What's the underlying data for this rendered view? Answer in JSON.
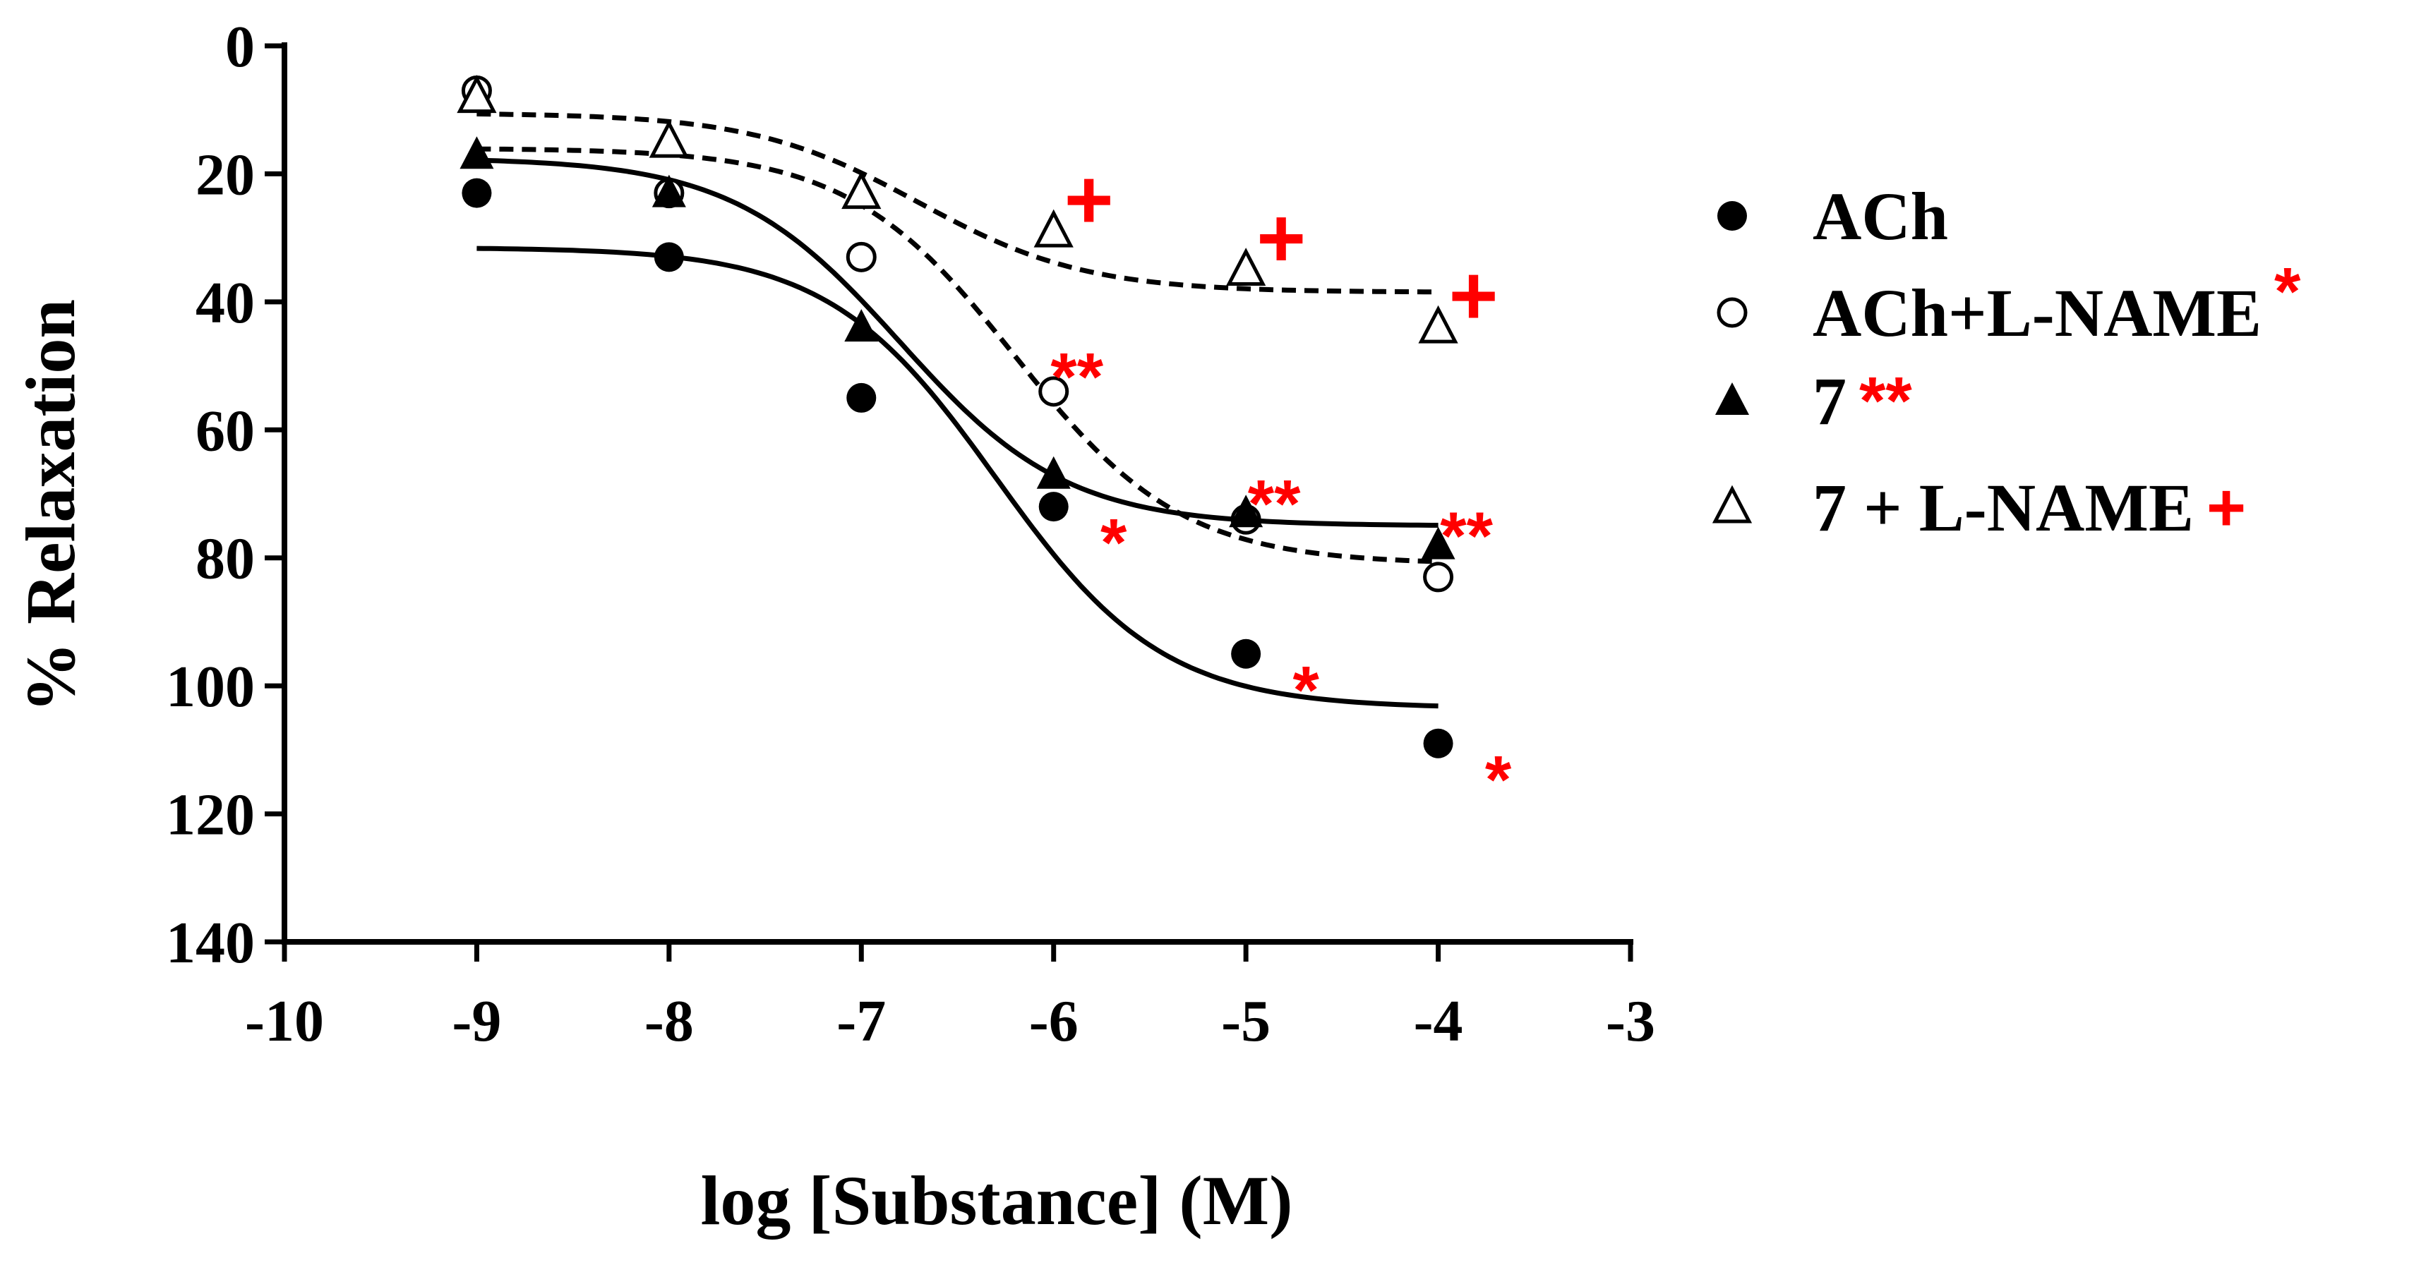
{
  "chart_data": {
    "type": "scatter",
    "title": "",
    "xlabel": "log [Substance] (M)",
    "ylabel": "% Relaxation",
    "xlim": [
      -10,
      -3
    ],
    "ylim": [
      0,
      140
    ],
    "y_inverted": true,
    "x_ticks": [
      "-10",
      "-9",
      "-8",
      "-7",
      "-6",
      "-5",
      "-4",
      "-3"
    ],
    "y_ticks": [
      "0",
      "20",
      "40",
      "60",
      "80",
      "100",
      "120",
      "140"
    ],
    "grid": false,
    "legend_position": "right",
    "colors": {
      "axis": "#000000",
      "significance": "#ff0000"
    },
    "x": [
      -9,
      -8,
      -7,
      -6,
      -5,
      -4
    ],
    "series": [
      {
        "name": "ACh",
        "marker": "filled-circle",
        "line": "solid",
        "legend_mark": "",
        "values": [
          23,
          33,
          55,
          72,
          95,
          109
        ],
        "curve": {
          "bottom": 31.5,
          "top": 103.5,
          "logEC50": -6.3,
          "hill": 1.0
        },
        "sig_marks": [
          "",
          "",
          "",
          "*",
          "*",
          "*"
        ]
      },
      {
        "name": "ACh+L-NAME",
        "marker": "open-circle",
        "line": "dashed",
        "legend_mark": "*",
        "values": [
          7,
          23,
          33,
          54,
          74,
          83
        ],
        "curve": {
          "bottom": 16,
          "top": 81,
          "logEC50": -6.2,
          "hill": 1.0
        },
        "sig_marks": [
          "",
          "",
          "",
          "**",
          "",
          ""
        ]
      },
      {
        "name": "7",
        "marker": "filled-triangle",
        "line": "solid",
        "legend_mark": "**",
        "values": [
          17,
          23,
          44,
          67,
          73,
          78
        ],
        "curve": {
          "bottom": 17.5,
          "top": 75,
          "logEC50": -6.8,
          "hill": 1.0
        },
        "sig_marks": [
          "",
          "",
          "",
          "",
          "**",
          "**"
        ]
      },
      {
        "name": "7 + L-NAME",
        "marker": "open-triangle",
        "line": "dashed",
        "legend_mark": "+",
        "values": [
          8,
          15,
          23,
          29,
          35,
          44
        ],
        "curve": {
          "bottom": 10.5,
          "top": 38.5,
          "logEC50": -6.7,
          "hill": 1.0
        },
        "sig_marks": [
          "",
          "",
          "",
          "+",
          "+",
          "+"
        ]
      }
    ]
  }
}
